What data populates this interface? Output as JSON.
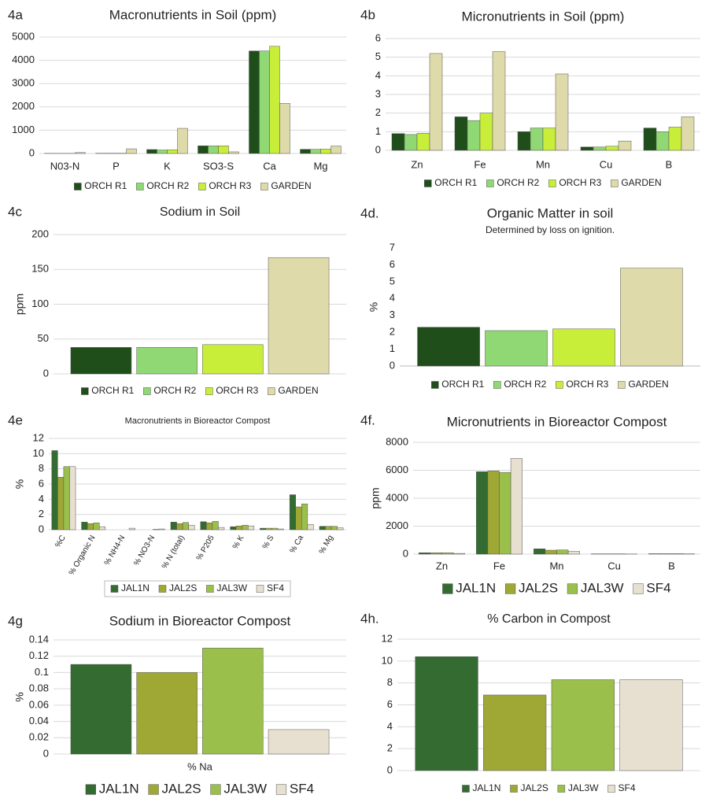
{
  "chart_data": [
    {
      "type": "bar",
      "panel": "4a",
      "title": "Macronutrients in Soil (ppm)",
      "categories": [
        "N03-N",
        "P",
        "K",
        "SO3-S",
        "Ca",
        "Mg"
      ],
      "series": [
        {
          "name": "ORCH R1",
          "color": "#1f4e1a",
          "values": [
            5,
            10,
            170,
            330,
            4400,
            180
          ]
        },
        {
          "name": "ORCH R2",
          "color": "#8fd873",
          "values": [
            5,
            10,
            150,
            330,
            4400,
            180
          ]
        },
        {
          "name": "ORCH R3",
          "color": "#c8ee3a",
          "values": [
            5,
            10,
            160,
            330,
            4600,
            190
          ]
        },
        {
          "name": "GARDEN",
          "color": "#dedaa9",
          "values": [
            40,
            200,
            1080,
            70,
            2150,
            320
          ]
        }
      ],
      "ylim": [
        0,
        5000
      ],
      "yticks": [
        0,
        1000,
        2000,
        3000,
        4000,
        5000
      ],
      "grid": true,
      "legend": "bottom"
    },
    {
      "type": "bar",
      "panel": "4b",
      "title": "Micronutrients in Soil (ppm)",
      "categories": [
        "Zn",
        "Fe",
        "Mn",
        "Cu",
        "B"
      ],
      "series": [
        {
          "name": "ORCH R1",
          "color": "#1f4e1a",
          "values": [
            0.9,
            1.8,
            1.0,
            0.18,
            1.2
          ]
        },
        {
          "name": "ORCH R2",
          "color": "#8fd873",
          "values": [
            0.85,
            1.6,
            1.2,
            0.18,
            1.0
          ]
        },
        {
          "name": "ORCH R3",
          "color": "#c8ee3a",
          "values": [
            0.92,
            2.0,
            1.2,
            0.22,
            1.25
          ]
        },
        {
          "name": "GARDEN",
          "color": "#dedaa9",
          "values": [
            5.2,
            5.3,
            4.1,
            0.5,
            1.8
          ]
        }
      ],
      "ylim": [
        0,
        6
      ],
      "yticks": [
        0,
        1,
        2,
        3,
        4,
        5,
        6
      ],
      "grid": true,
      "legend": "bottom"
    },
    {
      "type": "bar",
      "panel": "4c",
      "title": "Sodium in Soil",
      "ylabel": "ppm",
      "categories": [
        null
      ],
      "series": [
        {
          "name": "ORCH R1",
          "color": "#1f4e1a",
          "values": [
            38
          ]
        },
        {
          "name": "ORCH R2",
          "color": "#8fd873",
          "values": [
            38
          ]
        },
        {
          "name": "ORCH R3",
          "color": "#c8ee3a",
          "values": [
            42
          ]
        },
        {
          "name": "GARDEN",
          "color": "#dedaa9",
          "values": [
            167
          ]
        }
      ],
      "ylim": [
        0,
        200
      ],
      "yticks": [
        0,
        50,
        100,
        150,
        200
      ],
      "grid": true,
      "legend": "bottom"
    },
    {
      "type": "bar",
      "panel": "4d.",
      "title": "Organic Matter in soil",
      "subtitle": "Determined by loss on ignition.",
      "ylabel": "%",
      "categories": [
        null
      ],
      "series": [
        {
          "name": "ORCH R1",
          "color": "#1f4e1a",
          "values": [
            2.3
          ]
        },
        {
          "name": "ORCH R2",
          "color": "#8fd873",
          "values": [
            2.1
          ]
        },
        {
          "name": "ORCH R3",
          "color": "#c8ee3a",
          "values": [
            2.2
          ]
        },
        {
          "name": "GARDEN",
          "color": "#dedaa9",
          "values": [
            5.8
          ]
        }
      ],
      "ylim": [
        0,
        7
      ],
      "yticks": [
        0,
        1,
        2,
        3,
        4,
        5,
        6,
        7
      ],
      "grid": false,
      "legend": "bottom"
    },
    {
      "type": "bar",
      "panel": "4e",
      "title": "Macronutrients in Bioreactor Compost",
      "ylabel": "%",
      "categories": [
        "%C",
        "% Organic N",
        "% NH4-N",
        "% NO3-N",
        "% N (total)",
        "% P205",
        "% K",
        "% S",
        "% Ca",
        "% Mg"
      ],
      "series": [
        {
          "name": "JAL1N",
          "color": "#336b30",
          "values": [
            10.4,
            1.0,
            0,
            0,
            1.0,
            1.05,
            0.4,
            0.2,
            4.6,
            0.45
          ]
        },
        {
          "name": "JAL2S",
          "color": "#9fa834",
          "values": [
            6.9,
            0.8,
            0,
            0,
            0.8,
            0.9,
            0.5,
            0.2,
            3.0,
            0.45
          ]
        },
        {
          "name": "JAL3W",
          "color": "#9bbf4b",
          "values": [
            8.3,
            0.9,
            0,
            0.05,
            0.95,
            1.1,
            0.6,
            0.2,
            3.4,
            0.45
          ]
        },
        {
          "name": "SF4",
          "color": "#e7e0d0",
          "values": [
            8.3,
            0.4,
            0.2,
            0.1,
            0.6,
            0.3,
            0.5,
            0.1,
            0.7,
            0.25
          ]
        }
      ],
      "ylim": [
        0,
        12
      ],
      "yticks": [
        0,
        2,
        4,
        6,
        8,
        10,
        12
      ],
      "grid": true,
      "legend": "bottom"
    },
    {
      "type": "bar",
      "panel": "4f.",
      "title": "Micronutrients in Bioreactor Compost",
      "ylabel": "ppm",
      "categories": [
        "Zn",
        "Fe",
        "Mn",
        "Cu",
        "B"
      ],
      "series": [
        {
          "name": "JAL1N",
          "color": "#336b30",
          "values": [
            100,
            5900,
            380,
            20,
            30
          ]
        },
        {
          "name": "JAL2S",
          "color": "#9fa834",
          "values": [
            100,
            5950,
            280,
            20,
            30
          ]
        },
        {
          "name": "JAL3W",
          "color": "#9bbf4b",
          "values": [
            100,
            5850,
            300,
            20,
            30
          ]
        },
        {
          "name": "SF4",
          "color": "#e7e0d0",
          "values": [
            50,
            6850,
            200,
            10,
            20
          ]
        }
      ],
      "ylim": [
        0,
        8000
      ],
      "yticks": [
        0,
        2000,
        4000,
        6000,
        8000
      ],
      "grid": true,
      "legend": "bottom"
    },
    {
      "type": "bar",
      "panel": "4g",
      "title": "Sodium in Bioreactor Compost",
      "ylabel": "%",
      "categories": [
        "% Na"
      ],
      "series": [
        {
          "name": "JAL1N",
          "color": "#336b30",
          "values": [
            0.11
          ]
        },
        {
          "name": "JAL2S",
          "color": "#9fa834",
          "values": [
            0.1
          ]
        },
        {
          "name": "JAL3W",
          "color": "#9bbf4b",
          "values": [
            0.13
          ]
        },
        {
          "name": "SF4",
          "color": "#e7e0d0",
          "values": [
            0.03
          ]
        }
      ],
      "ylim": [
        0,
        0.14
      ],
      "yticks": [
        0,
        0.02,
        0.04,
        0.06,
        0.08,
        0.1,
        0.12,
        0.14
      ],
      "grid": true,
      "legend": "bottom"
    },
    {
      "type": "bar",
      "panel": "4h.",
      "title": "% Carbon in Compost",
      "categories": [
        null
      ],
      "series": [
        {
          "name": "JAL1N",
          "color": "#336b30",
          "values": [
            10.4
          ]
        },
        {
          "name": "JAL2S",
          "color": "#9fa834",
          "values": [
            6.9
          ]
        },
        {
          "name": "JAL3W",
          "color": "#9bbf4b",
          "values": [
            8.3
          ]
        },
        {
          "name": "SF4",
          "color": "#e7e0d0",
          "values": [
            8.3
          ]
        }
      ],
      "ylim": [
        0,
        12
      ],
      "yticks": [
        0,
        2,
        4,
        6,
        8,
        10,
        12
      ],
      "grid": true,
      "legend": "bottom"
    }
  ]
}
